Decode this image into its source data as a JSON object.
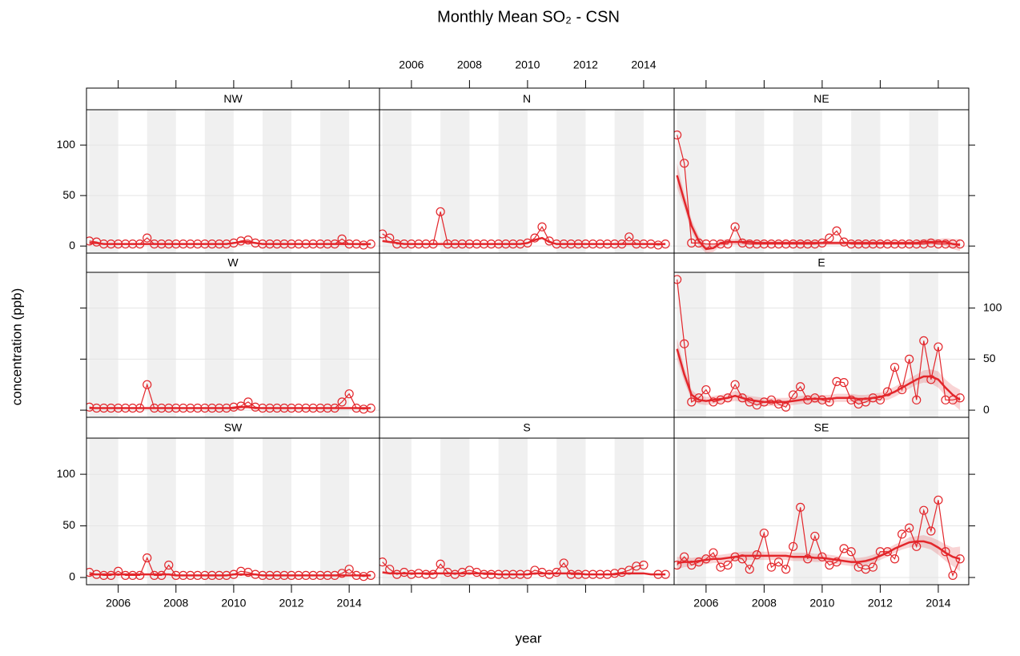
{
  "chart_data": {
    "type": "line",
    "title": "Monthly Mean SO₂ - CSN",
    "x_label": "year",
    "y_label": "concentration (ppb)",
    "color": "#e3262b",
    "xlim": [
      2004.9,
      2015.05
    ],
    "xticks": [
      2006,
      2008,
      2010,
      2012,
      2014
    ],
    "ylim": [
      -7,
      135
    ],
    "yticks": [
      0,
      50,
      100
    ],
    "grid": true,
    "shade_years": [
      2005,
      2007,
      2009,
      2011,
      2013
    ],
    "x": [
      2005.0,
      2005.25,
      2005.5,
      2005.75,
      2006.0,
      2006.25,
      2006.5,
      2006.75,
      2007.0,
      2007.25,
      2007.5,
      2007.75,
      2008.0,
      2008.25,
      2008.5,
      2008.75,
      2009.0,
      2009.25,
      2009.5,
      2009.75,
      2010.0,
      2010.25,
      2010.5,
      2010.75,
      2011.0,
      2011.25,
      2011.5,
      2011.75,
      2012.0,
      2012.25,
      2012.5,
      2012.75,
      2013.0,
      2013.25,
      2013.5,
      2013.75,
      2014.0,
      2014.25,
      2014.5,
      2014.75
    ],
    "panels": [
      {
        "name": "NW",
        "values": [
          5,
          4,
          2,
          2,
          2,
          2,
          2,
          2,
          8,
          2,
          2,
          2,
          2,
          2,
          2,
          2,
          2,
          2,
          2,
          2,
          3,
          5,
          6,
          3,
          2,
          2,
          2,
          2,
          2,
          2,
          2,
          2,
          2,
          2,
          2,
          7,
          2,
          2,
          1,
          2
        ],
        "smooth": [
          3,
          3,
          2,
          2,
          2,
          2,
          2,
          2,
          2,
          2,
          2,
          2,
          2,
          2,
          2,
          2,
          2,
          2,
          2,
          2,
          3,
          4,
          4,
          3,
          2,
          2,
          2,
          2,
          2,
          2,
          2,
          2,
          2,
          2,
          2,
          2,
          2,
          2,
          2,
          2
        ]
      },
      {
        "name": "N",
        "values": [
          12,
          8,
          2,
          2,
          2,
          2,
          2,
          2,
          34,
          2,
          2,
          2,
          2,
          2,
          2,
          2,
          2,
          2,
          2,
          2,
          3,
          8,
          19,
          5,
          2,
          2,
          2,
          2,
          2,
          2,
          2,
          2,
          2,
          2,
          9,
          2,
          2,
          2,
          1,
          2
        ],
        "smooth": [
          5,
          4,
          3,
          2,
          2,
          2,
          2,
          2,
          2,
          2,
          2,
          2,
          2,
          2,
          2,
          2,
          2,
          2,
          2,
          2,
          3,
          6,
          8,
          4,
          2,
          2,
          2,
          2,
          2,
          2,
          2,
          2,
          2,
          2,
          2,
          2,
          2,
          2,
          2,
          2
        ]
      },
      {
        "name": "NE",
        "values": [
          110,
          82,
          3,
          3,
          2,
          2,
          2,
          2,
          19,
          3,
          2,
          2,
          2,
          2,
          2,
          2,
          2,
          2,
          2,
          2,
          3,
          8,
          15,
          4,
          2,
          2,
          2,
          2,
          2,
          2,
          2,
          2,
          2,
          2,
          2,
          3,
          2,
          2,
          2,
          2
        ],
        "smooth": [
          70,
          45,
          20,
          5,
          -3,
          -2,
          3,
          4,
          4,
          4,
          4,
          3,
          3,
          3,
          3,
          3,
          3,
          3,
          3,
          3,
          3,
          3,
          3,
          3,
          3,
          3,
          3,
          3,
          3,
          3,
          3,
          3,
          3,
          3,
          4,
          4,
          4,
          4,
          2,
          1
        ],
        "lower": [
          58,
          38,
          14,
          0,
          -7,
          -6,
          0,
          1,
          1,
          1,
          1,
          1,
          1,
          1,
          1,
          1,
          1,
          1,
          1,
          1,
          1,
          1,
          1,
          1,
          1,
          1,
          1,
          1,
          1,
          1,
          1,
          1,
          1,
          1,
          1,
          1,
          1,
          0,
          -3,
          -5
        ],
        "upper": [
          82,
          52,
          26,
          10,
          1,
          2,
          6,
          7,
          7,
          7,
          6,
          5,
          5,
          5,
          5,
          5,
          5,
          5,
          5,
          5,
          5,
          5,
          5,
          5,
          5,
          5,
          5,
          5,
          5,
          5,
          5,
          5,
          5,
          5,
          7,
          7,
          7,
          8,
          7,
          7
        ]
      },
      {
        "name": "W",
        "values": [
          3,
          2,
          2,
          2,
          2,
          2,
          2,
          2,
          25,
          2,
          2,
          2,
          2,
          2,
          2,
          2,
          2,
          2,
          2,
          2,
          3,
          4,
          8,
          3,
          2,
          2,
          2,
          2,
          2,
          2,
          2,
          2,
          2,
          2,
          2,
          8,
          16,
          2,
          1,
          2
        ],
        "smooth": [
          2,
          2,
          2,
          2,
          2,
          2,
          2,
          2,
          2,
          2,
          2,
          2,
          2,
          2,
          2,
          2,
          2,
          2,
          2,
          2,
          2,
          3,
          3,
          2,
          2,
          2,
          2,
          2,
          2,
          2,
          2,
          2,
          2,
          2,
          2,
          2,
          2,
          2,
          2,
          2
        ]
      },
      {
        "name": "E",
        "values": [
          128,
          65,
          8,
          12,
          20,
          8,
          10,
          12,
          25,
          12,
          8,
          5,
          8,
          10,
          6,
          3,
          15,
          23,
          10,
          12,
          10,
          8,
          28,
          27,
          10,
          6,
          8,
          12,
          10,
          18,
          42,
          20,
          50,
          10,
          68,
          30,
          62,
          10,
          10,
          12
        ],
        "smooth": [
          60,
          35,
          15,
          10,
          9,
          10,
          11,
          12,
          14,
          12,
          10,
          9,
          8,
          8,
          8,
          8,
          9,
          10,
          11,
          11,
          11,
          11,
          12,
          12,
          12,
          11,
          11,
          12,
          13,
          15,
          18,
          22,
          26,
          30,
          33,
          33,
          30,
          22,
          15,
          10
        ],
        "lower": [
          50,
          28,
          10,
          6,
          5,
          6,
          7,
          8,
          9,
          8,
          6,
          5,
          4,
          4,
          4,
          4,
          5,
          6,
          7,
          7,
          7,
          7,
          8,
          8,
          8,
          7,
          7,
          8,
          9,
          10,
          13,
          17,
          21,
          25,
          27,
          26,
          22,
          14,
          6,
          0
        ],
        "upper": [
          70,
          42,
          20,
          14,
          13,
          14,
          15,
          16,
          19,
          16,
          14,
          13,
          12,
          12,
          12,
          12,
          13,
          14,
          15,
          15,
          15,
          15,
          16,
          16,
          16,
          15,
          15,
          16,
          17,
          20,
          23,
          27,
          31,
          35,
          39,
          40,
          38,
          30,
          24,
          20
        ]
      },
      {
        "name": "SW",
        "values": [
          5,
          3,
          2,
          2,
          6,
          2,
          2,
          2,
          19,
          2,
          2,
          12,
          2,
          2,
          2,
          2,
          2,
          2,
          2,
          2,
          3,
          6,
          5,
          3,
          2,
          2,
          2,
          2,
          2,
          2,
          2,
          2,
          2,
          2,
          2,
          4,
          8,
          2,
          1,
          2
        ],
        "smooth": [
          3,
          3,
          3,
          3,
          3,
          3,
          3,
          3,
          3,
          3,
          3,
          3,
          2,
          2,
          2,
          2,
          2,
          2,
          2,
          2,
          3,
          3,
          3,
          3,
          2,
          2,
          2,
          2,
          2,
          2,
          2,
          2,
          2,
          2,
          2,
          2,
          2,
          2,
          2,
          2
        ]
      },
      {
        "name": "S",
        "values": [
          15,
          8,
          3,
          5,
          3,
          4,
          3,
          3,
          13,
          5,
          3,
          5,
          7,
          5,
          3,
          3,
          3,
          3,
          3,
          3,
          3,
          7,
          5,
          3,
          5,
          14,
          3,
          3,
          3,
          3,
          3,
          3,
          4,
          5,
          7,
          11,
          12,
          null,
          3,
          3
        ],
        "smooth": [
          5,
          4,
          4,
          4,
          4,
          4,
          4,
          4,
          4,
          4,
          4,
          4,
          4,
          4,
          4,
          4,
          3,
          3,
          3,
          3,
          3,
          4,
          4,
          4,
          4,
          4,
          4,
          4,
          3,
          3,
          3,
          3,
          3,
          4,
          4,
          4,
          4,
          3,
          3,
          3
        ]
      },
      {
        "name": "SE",
        "values": [
          12,
          20,
          12,
          15,
          18,
          24,
          10,
          12,
          20,
          18,
          8,
          22,
          43,
          10,
          15,
          8,
          30,
          68,
          18,
          40,
          20,
          12,
          15,
          28,
          25,
          10,
          8,
          10,
          25,
          25,
          18,
          42,
          48,
          30,
          65,
          45,
          75,
          25,
          2,
          18
        ],
        "smooth": [
          14,
          15,
          15,
          16,
          17,
          18,
          18,
          19,
          20,
          21,
          21,
          21,
          21,
          21,
          21,
          21,
          20,
          20,
          20,
          19,
          19,
          18,
          17,
          16,
          15,
          15,
          16,
          18,
          21,
          24,
          28,
          31,
          34,
          35,
          35,
          33,
          29,
          24,
          20,
          18
        ],
        "lower": [
          8,
          10,
          11,
          12,
          13,
          14,
          14,
          15,
          16,
          17,
          17,
          17,
          17,
          17,
          17,
          17,
          16,
          16,
          16,
          15,
          15,
          14,
          13,
          12,
          11,
          11,
          12,
          14,
          17,
          20,
          24,
          27,
          29,
          30,
          29,
          27,
          22,
          16,
          11,
          6
        ],
        "upper": [
          20,
          20,
          19,
          20,
          21,
          22,
          22,
          23,
          24,
          25,
          25,
          25,
          25,
          25,
          25,
          25,
          24,
          24,
          24,
          23,
          23,
          22,
          21,
          20,
          19,
          19,
          20,
          22,
          25,
          28,
          32,
          35,
          39,
          40,
          41,
          39,
          36,
          32,
          29,
          30
        ]
      }
    ]
  }
}
